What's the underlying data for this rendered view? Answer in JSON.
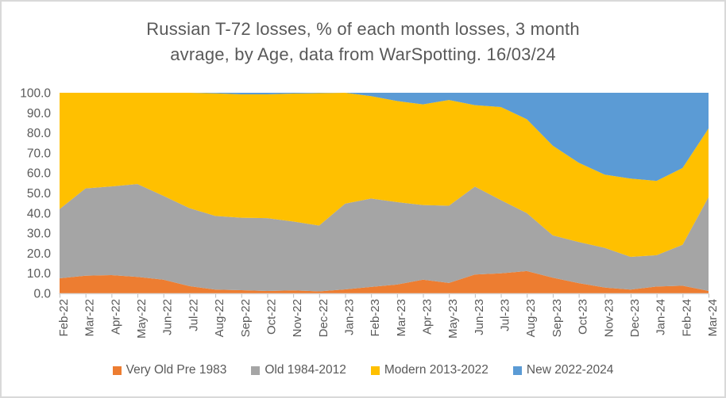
{
  "title": {
    "text": "Russian T-72 losses, % of each month losses, 3 month avrage, by Age, data from WarSpotting. 16/03/24",
    "lines": [
      "Russian T-72 losses, % of each month losses, 3 month",
      "avrage, by Age, data from WarSpotting. 16/03/24"
    ]
  },
  "colors": {
    "very_old": "#ED7D31",
    "old": "#A5A5A5",
    "modern": "#FFC000",
    "new": "#5B9BD5",
    "text": "#595959",
    "axis_line": "#D9D9D9",
    "tick_mark": "#BFBFBF",
    "frame_border": "#D9D9D9"
  },
  "chart_data": {
    "type": "area",
    "stacked": true,
    "stack_total": 100,
    "title": "Russian T-72 losses, % of each month losses, 3 month avrage, by Age, data from WarSpotting. 16/03/24",
    "xlabel": "",
    "ylabel": "",
    "ylim": [
      0,
      100
    ],
    "grid": false,
    "legend_position": "bottom",
    "x_tick_label_rotation": -90,
    "y_ticks": [
      {
        "label": "0.0",
        "value": 0
      },
      {
        "label": "10.0",
        "value": 10
      },
      {
        "label": "20.0",
        "value": 20
      },
      {
        "label": "30.0",
        "value": 30
      },
      {
        "label": "40.0",
        "value": 40
      },
      {
        "label": "50.0",
        "value": 50
      },
      {
        "label": "60.0",
        "value": 60
      },
      {
        "label": "70.0",
        "value": 70
      },
      {
        "label": "80.0",
        "value": 80
      },
      {
        "label": "90.0",
        "value": 90
      },
      {
        "label": "100.0",
        "value": 100
      }
    ],
    "categories": [
      "Feb-22",
      "Mar-22",
      "Apr-22",
      "May-22",
      "Jun-22",
      "Jul-22",
      "Aug-22",
      "Sep-22",
      "Oct-22",
      "Nov-22",
      "Dec-22",
      "Jan-23",
      "Feb-23",
      "Mar-23",
      "Apr-23",
      "May-23",
      "Jun-23",
      "Jul-23",
      "Aug-23",
      "Sep-23",
      "Oct-23",
      "Nov-23",
      "Dec-23",
      "Jan-24",
      "Feb-24",
      "Mar-24"
    ],
    "series": [
      {
        "name": "Very Old Pre 1983",
        "color": "#ED7D31",
        "values": [
          7.5,
          8.8,
          9.1,
          8.2,
          6.8,
          3.6,
          1.9,
          1.6,
          1.2,
          1.5,
          1.0,
          2.0,
          3.2,
          4.4,
          6.8,
          5.2,
          9.4,
          10.0,
          11.1,
          7.8,
          5.1,
          2.9,
          1.9,
          3.4,
          3.8,
          1.2
        ]
      },
      {
        "name": "Old 1984-2012",
        "color": "#A5A5A5",
        "values": [
          34.5,
          43.5,
          44.2,
          46.3,
          41.8,
          38.9,
          36.7,
          36.1,
          36.3,
          34.3,
          32.8,
          42.7,
          44.1,
          41.1,
          37.2,
          38.5,
          43.8,
          36.5,
          28.9,
          21.1,
          20.5,
          19.8,
          16.3,
          15.6,
          20.4,
          46.8
        ]
      },
      {
        "name": "Modern 2013-2022",
        "color": "#FFC000",
        "values": [
          58.0,
          47.7,
          46.7,
          45.5,
          51.4,
          57.5,
          61.1,
          61.5,
          61.7,
          63.8,
          66.0,
          55.3,
          51.0,
          50.4,
          50.2,
          52.7,
          40.6,
          46.4,
          46.8,
          44.7,
          39.5,
          36.5,
          39.0,
          37.1,
          38.3,
          34.2
        ]
      },
      {
        "name": "New 2022-2024",
        "color": "#5B9BD5",
        "values": [
          0.0,
          0.0,
          0.0,
          0.0,
          0.0,
          0.0,
          0.3,
          0.8,
          0.8,
          0.4,
          0.2,
          0.0,
          1.7,
          4.1,
          5.8,
          3.6,
          6.2,
          7.1,
          13.2,
          26.4,
          34.9,
          40.8,
          42.8,
          43.9,
          37.5,
          17.8
        ]
      }
    ]
  }
}
